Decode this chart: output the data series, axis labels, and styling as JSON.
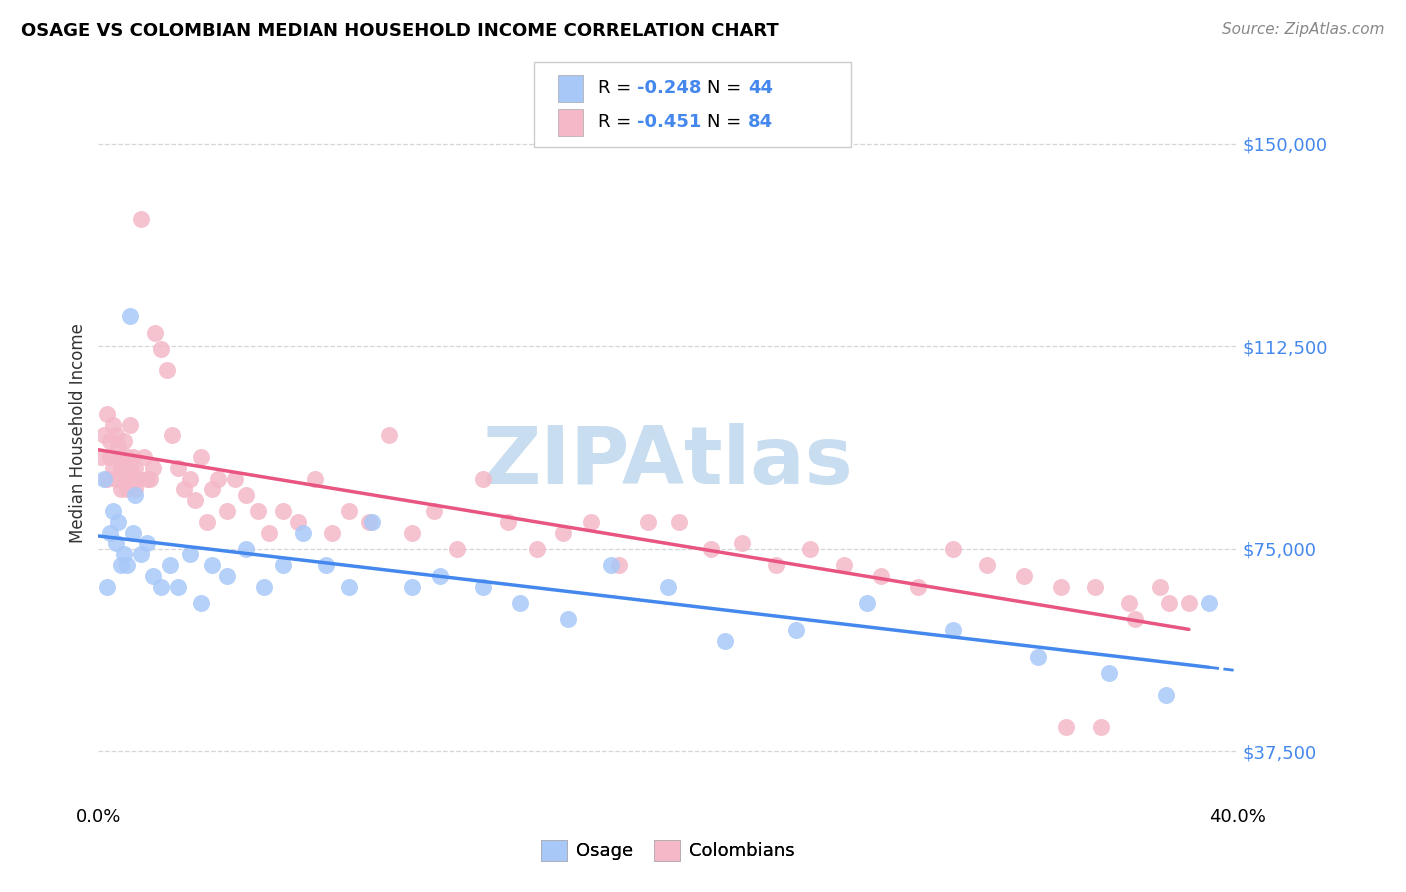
{
  "title": "OSAGE VS COLOMBIAN MEDIAN HOUSEHOLD INCOME CORRELATION CHART",
  "source": "Source: ZipAtlas.com",
  "ylabel": "Median Household Income",
  "y_ticks": [
    37500,
    75000,
    112500,
    150000
  ],
  "y_tick_labels": [
    "$37,500",
    "$75,000",
    "$112,500",
    "$150,000"
  ],
  "x_range": [
    0.0,
    0.4
  ],
  "y_range": [
    28000,
    165000
  ],
  "osage_R": -0.248,
  "osage_N": 44,
  "colombian_R": -0.451,
  "colombian_N": 84,
  "osage_color": "#a8c8f8",
  "colombian_color": "#f4b8c8",
  "osage_line_color": "#4488ee",
  "colombian_line_color": "#e85580",
  "watermark": "ZIPAtlas",
  "watermark_color": "#c8ddf0",
  "background_color": "#ffffff",
  "grid_color": "#cccccc",
  "osage_x": [
    0.002,
    0.003,
    0.004,
    0.005,
    0.006,
    0.007,
    0.008,
    0.009,
    0.01,
    0.011,
    0.012,
    0.013,
    0.015,
    0.017,
    0.019,
    0.022,
    0.025,
    0.028,
    0.032,
    0.036,
    0.04,
    0.045,
    0.052,
    0.058,
    0.065,
    0.072,
    0.08,
    0.088,
    0.096,
    0.11,
    0.12,
    0.135,
    0.148,
    0.165,
    0.18,
    0.2,
    0.22,
    0.245,
    0.27,
    0.3,
    0.33,
    0.355,
    0.375,
    0.39
  ],
  "osage_y": [
    88000,
    68000,
    78000,
    82000,
    76000,
    80000,
    72000,
    74000,
    72000,
    118000,
    78000,
    85000,
    74000,
    76000,
    70000,
    68000,
    72000,
    68000,
    74000,
    65000,
    72000,
    70000,
    75000,
    68000,
    72000,
    78000,
    72000,
    68000,
    80000,
    68000,
    70000,
    68000,
    65000,
    62000,
    72000,
    68000,
    58000,
    60000,
    65000,
    60000,
    55000,
    52000,
    48000,
    65000
  ],
  "colombian_x": [
    0.001,
    0.002,
    0.003,
    0.003,
    0.004,
    0.004,
    0.005,
    0.005,
    0.006,
    0.006,
    0.007,
    0.007,
    0.008,
    0.008,
    0.009,
    0.009,
    0.01,
    0.01,
    0.011,
    0.011,
    0.012,
    0.012,
    0.013,
    0.013,
    0.014,
    0.015,
    0.016,
    0.017,
    0.018,
    0.019,
    0.02,
    0.022,
    0.024,
    0.026,
    0.028,
    0.03,
    0.032,
    0.034,
    0.036,
    0.038,
    0.04,
    0.042,
    0.045,
    0.048,
    0.052,
    0.056,
    0.06,
    0.065,
    0.07,
    0.076,
    0.082,
    0.088,
    0.095,
    0.102,
    0.11,
    0.118,
    0.126,
    0.135,
    0.144,
    0.154,
    0.163,
    0.173,
    0.183,
    0.193,
    0.204,
    0.215,
    0.226,
    0.238,
    0.25,
    0.262,
    0.275,
    0.288,
    0.3,
    0.312,
    0.325,
    0.338,
    0.35,
    0.362,
    0.373,
    0.383,
    0.34,
    0.352,
    0.364,
    0.376
  ],
  "colombian_y": [
    92000,
    96000,
    88000,
    100000,
    92000,
    95000,
    98000,
    90000,
    96000,
    88000,
    94000,
    92000,
    86000,
    90000,
    95000,
    88000,
    92000,
    86000,
    98000,
    90000,
    88000,
    92000,
    86000,
    90000,
    88000,
    136000,
    92000,
    88000,
    88000,
    90000,
    115000,
    112000,
    108000,
    96000,
    90000,
    86000,
    88000,
    84000,
    92000,
    80000,
    86000,
    88000,
    82000,
    88000,
    85000,
    82000,
    78000,
    82000,
    80000,
    88000,
    78000,
    82000,
    80000,
    96000,
    78000,
    82000,
    75000,
    88000,
    80000,
    75000,
    78000,
    80000,
    72000,
    80000,
    80000,
    75000,
    76000,
    72000,
    75000,
    72000,
    70000,
    68000,
    75000,
    72000,
    70000,
    68000,
    68000,
    65000,
    68000,
    65000,
    42000,
    42000,
    62000,
    65000
  ]
}
